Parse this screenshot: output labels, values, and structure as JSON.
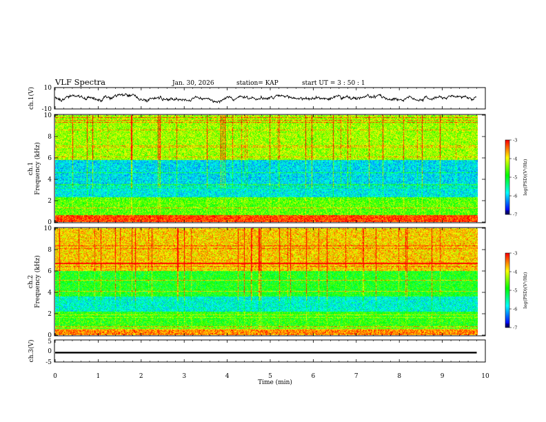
{
  "header": {
    "title": "VLF Spectra",
    "date": "Jan. 30, 2026",
    "station": "station= KAP",
    "start": "start  UT =  3 : 50 : 1"
  },
  "chart_data": [
    {
      "type": "line",
      "name": "ch.1 waveform",
      "ylabel": "ch.1(V)",
      "ylim": [
        -10,
        10
      ],
      "yticks": [
        "10",
        "-10"
      ],
      "x_range_min": [
        0,
        9.8
      ],
      "y_typical": [
        -5,
        5
      ]
    },
    {
      "type": "heatmap",
      "name": "ch.1 spectrogram",
      "ylabel_line1": "ch.1",
      "ylabel_line2": "Frequency (kHz)",
      "ylim": [
        0,
        10
      ],
      "yticks": [
        "0",
        "2",
        "4",
        "6",
        "8",
        "10"
      ],
      "x_range_min": [
        0,
        9.8
      ],
      "colorbar": {
        "label": "log(PSD)(V²/Hz)",
        "range": [
          -7,
          -3
        ],
        "ticks": [
          "-3",
          "-4",
          "-5",
          "-6",
          "-7"
        ]
      },
      "description_levels": [
        {
          "freq_range_khz": [
            0,
            0.6
          ],
          "level": -3.2
        },
        {
          "freq_range_khz": [
            0.6,
            2.3
          ],
          "level": -4.6
        },
        {
          "freq_range_khz": [
            2.3,
            3.3
          ],
          "level": -5.8
        },
        {
          "freq_range_khz": [
            3.3,
            5.8
          ],
          "level": -5.9
        },
        {
          "freq_range_khz": [
            5.8,
            10
          ],
          "level": -4.3
        }
      ]
    },
    {
      "type": "heatmap",
      "name": "ch.2 spectrogram",
      "ylabel_line1": "ch.2",
      "ylabel_line2": "Frequency (kHz)",
      "ylim": [
        0,
        10
      ],
      "yticks": [
        "0",
        "2",
        "4",
        "6",
        "8",
        "10"
      ],
      "x_range_min": [
        0,
        9.8
      ],
      "colorbar": {
        "label": "log(PSD)(V²/Hz)",
        "range": [
          -7,
          -3
        ],
        "ticks": [
          "-3",
          "-4",
          "-5",
          "-6",
          "-7"
        ]
      },
      "description_levels": [
        {
          "freq_range_khz": [
            0,
            0.5
          ],
          "level": -3.5
        },
        {
          "freq_range_khz": [
            0.5,
            2.2
          ],
          "level": -4.8
        },
        {
          "freq_range_khz": [
            2.2,
            3.6
          ],
          "level": -5.7
        },
        {
          "freq_range_khz": [
            3.6,
            6.0
          ],
          "level": -4.9
        },
        {
          "freq_range_khz": [
            6.0,
            10
          ],
          "level": -3.8
        }
      ]
    },
    {
      "type": "line",
      "name": "ch.3 waveform",
      "ylabel": "ch.3(V)",
      "ylim": [
        -5,
        5
      ],
      "yticks": [
        "5",
        "0",
        "-5"
      ],
      "x_range_min": [
        0,
        9.8
      ],
      "y_band": [
        -1.2,
        -0.4
      ]
    }
  ],
  "xaxis": {
    "label": "Time (min)",
    "ticks": [
      "0",
      "1",
      "2",
      "3",
      "4",
      "5",
      "6",
      "7",
      "8",
      "9",
      "10"
    ],
    "xlim": [
      0,
      10
    ]
  }
}
